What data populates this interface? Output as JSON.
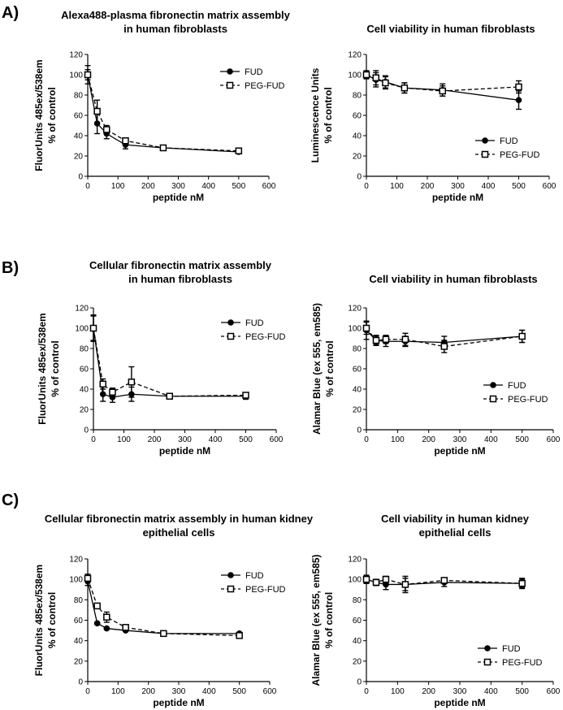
{
  "panels": [
    "A)",
    "B)",
    "C)"
  ],
  "chart_data": [
    {
      "type": "line",
      "title": [
        "Alexa488-plasma fibronectin matrix assembly",
        "in human fibroblasts"
      ],
      "xlabel": "peptide nM",
      "ylabel": [
        "FluorUnits 485ex/538em",
        "% of control"
      ],
      "xlim": [
        0,
        600
      ],
      "ylim": [
        0,
        120
      ],
      "xticks": [
        0,
        100,
        200,
        300,
        400,
        500,
        600
      ],
      "yticks": [
        0,
        20,
        40,
        60,
        80,
        100,
        120
      ],
      "grid": false,
      "legend_position": "top-right",
      "x": [
        0,
        31.25,
        62.5,
        125,
        250,
        500
      ],
      "series": [
        {
          "name": "FUD",
          "marker": "circle-filled",
          "line": "solid",
          "values": [
            100,
            52,
            42,
            31,
            28,
            24
          ],
          "errors": [
            9,
            10,
            5,
            4,
            1,
            1
          ]
        },
        {
          "name": "PEG-FUD",
          "marker": "square-open",
          "line": "dashed",
          "values": [
            100,
            64,
            46,
            35,
            28,
            25
          ],
          "errors": [
            5,
            11,
            4,
            2,
            1,
            1
          ]
        }
      ]
    },
    {
      "type": "line",
      "title": [
        "Cell viability in human fibroblasts"
      ],
      "xlabel": "peptide nM",
      "ylabel": [
        "Luminescence Units",
        "% of control"
      ],
      "xlim": [
        0,
        600
      ],
      "ylim": [
        0,
        120
      ],
      "xticks": [
        0,
        100,
        200,
        300,
        400,
        500,
        600
      ],
      "yticks": [
        0,
        20,
        40,
        60,
        80,
        100,
        120
      ],
      "grid": false,
      "legend_position": "center-right",
      "x": [
        0,
        31.25,
        62.5,
        125,
        250,
        500
      ],
      "series": [
        {
          "name": "FUD",
          "marker": "circle-filled",
          "line": "solid",
          "values": [
            100,
            95,
            93,
            87,
            85,
            75
          ],
          "errors": [
            3,
            7,
            6,
            5,
            6,
            9
          ]
        },
        {
          "name": "PEG-FUD",
          "marker": "square-open",
          "line": "dashed",
          "values": [
            100,
            97,
            92,
            87,
            84,
            88
          ],
          "errors": [
            4,
            7,
            6,
            5,
            5,
            6
          ]
        }
      ]
    },
    {
      "type": "line",
      "title": [
        "Cellular fibronectin matrix assembly",
        "in human fibroblasts"
      ],
      "xlabel": "peptide nM",
      "ylabel": [
        "FluorUnits 485ex/538em",
        "% of control"
      ],
      "xlim": [
        0,
        600
      ],
      "ylim": [
        0,
        120
      ],
      "xticks": [
        0,
        100,
        200,
        300,
        400,
        500,
        600
      ],
      "yticks": [
        0,
        20,
        40,
        60,
        80,
        100,
        120
      ],
      "grid": false,
      "legend_position": "top-right",
      "x": [
        0,
        31.25,
        62.5,
        125,
        250,
        500
      ],
      "series": [
        {
          "name": "FUD",
          "marker": "circle-filled",
          "line": "solid",
          "values": [
            100,
            35,
            32,
            35,
            33,
            33
          ],
          "errors": [
            13,
            7,
            5,
            7,
            2,
            3
          ]
        },
        {
          "name": "PEG-FUD",
          "marker": "square-open",
          "line": "dashed",
          "values": [
            100,
            45,
            37,
            47,
            33,
            34
          ],
          "errors": [
            12,
            5,
            4,
            15,
            2,
            2
          ]
        }
      ]
    },
    {
      "type": "line",
      "title": [
        "Cell viability in human fibroblasts"
      ],
      "xlabel": "peptide nM",
      "ylabel": [
        "Alamar Blue (ex 555, em585)",
        "% of control"
      ],
      "xlim": [
        0,
        600
      ],
      "ylim": [
        0,
        120
      ],
      "xticks": [
        0,
        100,
        200,
        300,
        400,
        500,
        600
      ],
      "yticks": [
        0,
        20,
        40,
        60,
        80,
        100,
        120
      ],
      "grid": false,
      "legend_position": "bottom-right",
      "x": [
        0,
        31.25,
        62.5,
        125,
        250,
        500
      ],
      "series": [
        {
          "name": "FUD",
          "marker": "circle-filled",
          "line": "solid",
          "values": [
            98,
            88,
            87,
            87,
            86,
            92
          ],
          "errors": [
            9,
            5,
            5,
            5,
            6,
            6
          ]
        },
        {
          "name": "PEG-FUD",
          "marker": "square-open",
          "line": "dashed",
          "values": [
            100,
            88,
            89,
            89,
            82,
            92
          ],
          "errors": [
            6,
            4,
            4,
            6,
            6,
            6
          ]
        }
      ]
    },
    {
      "type": "line",
      "title": [
        "Cellular fibronectin matrix assembly in human kidney",
        "epithelial cells"
      ],
      "xlabel": "peptide nM",
      "ylabel": [
        "FluorUnits 485ex/538em",
        "% of control"
      ],
      "xlim": [
        0,
        600
      ],
      "ylim": [
        0,
        120
      ],
      "xticks": [
        0,
        100,
        200,
        300,
        400,
        500,
        600
      ],
      "yticks": [
        0,
        20,
        40,
        60,
        80,
        100,
        120
      ],
      "grid": false,
      "legend_position": "top-right",
      "x": [
        0,
        31.25,
        62.5,
        125,
        250,
        500
      ],
      "series": [
        {
          "name": "FUD",
          "marker": "circle-filled",
          "line": "solid",
          "values": [
            98,
            57,
            52,
            50,
            47,
            47
          ],
          "errors": [
            4,
            1,
            1,
            1,
            1,
            1
          ]
        },
        {
          "name": "PEG-FUD",
          "marker": "square-open",
          "line": "dashed",
          "values": [
            101,
            74,
            63,
            53,
            47,
            45
          ],
          "errors": [
            4,
            2,
            5,
            2,
            1,
            1
          ]
        }
      ]
    },
    {
      "type": "line",
      "title": [
        "Cell viability in human kidney",
        "epithelial cells"
      ],
      "xlabel": "peptide nM",
      "ylabel": [
        "Alamar Blue (ex 555, em585)",
        "% of control"
      ],
      "xlim": [
        0,
        600
      ],
      "ylim": [
        0,
        120
      ],
      "xticks": [
        0,
        100,
        200,
        300,
        400,
        500,
        600
      ],
      "yticks": [
        0,
        20,
        40,
        60,
        80,
        100,
        120
      ],
      "grid": false,
      "legend_position": "bottom-right",
      "x": [
        0,
        31.25,
        62.5,
        125,
        250,
        500
      ],
      "series": [
        {
          "name": "FUD",
          "marker": "circle-filled",
          "line": "solid",
          "values": [
            100,
            97,
            95,
            95,
            97,
            96
          ],
          "errors": [
            4,
            3,
            5,
            6,
            4,
            5
          ]
        },
        {
          "name": "PEG-FUD",
          "marker": "square-open",
          "line": "dashed",
          "values": [
            100,
            97,
            100,
            95,
            99,
            96
          ],
          "errors": [
            4,
            3,
            3,
            8,
            2,
            4
          ]
        }
      ]
    }
  ]
}
